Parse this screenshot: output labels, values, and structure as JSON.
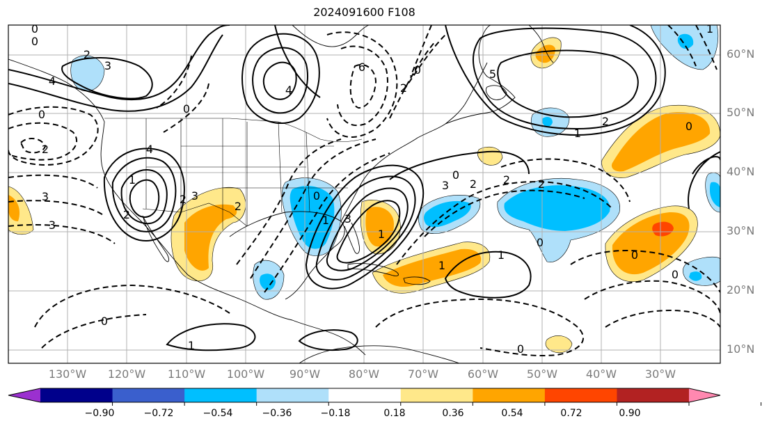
{
  "title": "2024091600 F108",
  "lat_labels": [
    "60°N",
    "50°N",
    "40°N",
    "30°N",
    "20°N",
    "10°N"
  ],
  "lon_labels": [
    "130°W",
    "120°W",
    "110°W",
    "100°W",
    "90°W",
    "80°W",
    "70°W",
    "60°W",
    "50°W",
    "40°W",
    "30°W"
  ],
  "colorbar": {
    "ticks": [
      "−0.90",
      "−0.72",
      "−0.54",
      "−0.36",
      "−0.18",
      "0.18",
      "0.36",
      "0.54",
      "0.72",
      "0.90"
    ],
    "colors": [
      "#9b30d0",
      "#00008b",
      "#3a5fcd",
      "#00bfff",
      "#afe0fa",
      "#ffffff",
      "#ffe88a",
      "#ffa500",
      "#ff4500",
      "#b22222",
      "#ff88b0"
    ]
  },
  "contour_labels": [
    "0",
    "0",
    "2",
    "3",
    "4",
    "0",
    "4",
    "6",
    "0",
    "2",
    "3",
    "3",
    "4",
    "2",
    "1",
    "2",
    "3",
    "2",
    "0",
    "1",
    "3",
    "1",
    "3",
    "2",
    "5",
    "2",
    "0",
    "0",
    "2",
    "2",
    "2",
    "1",
    "0",
    "1",
    "0",
    "0",
    "1",
    "0",
    "1",
    "0",
    "1",
    "0"
  ]
}
